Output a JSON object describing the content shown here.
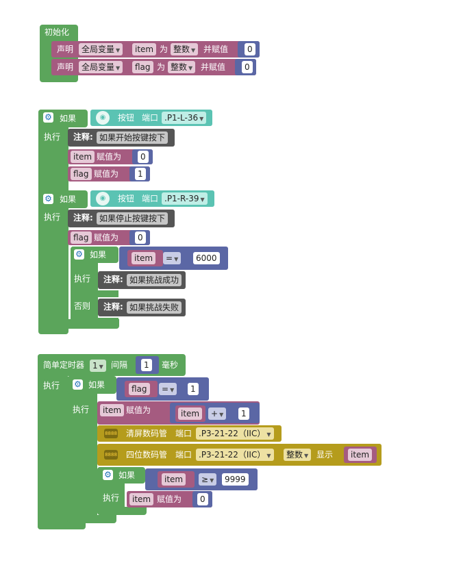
{
  "init": {
    "title": "初始化",
    "decls": [
      {
        "kw": "声明",
        "scope": "全局变量",
        "var": "item",
        "as": "为",
        "type": "整数",
        "assign": "并赋值",
        "value": "0"
      },
      {
        "kw": "声明",
        "scope": "全局变量",
        "var": "flag",
        "as": "为",
        "type": "整数",
        "assign": "并赋值",
        "value": "0"
      }
    ]
  },
  "if1": {
    "if_label": "如果",
    "do_label": "执行",
    "button": "按钮",
    "port_label": "端口",
    "port": ".P1-L-36",
    "note_label": "注释:",
    "note": "如果开始按键按下",
    "set_item": "item",
    "assign": "赋值为",
    "item_val": "0",
    "set_flag": "flag",
    "flag_val": "1"
  },
  "if2": {
    "if_label": "如果",
    "do_label": "执行",
    "button": "按钮",
    "port_label": "端口",
    "port": ".P1-R-39",
    "note_label": "注释:",
    "note": "如果停止按键按下",
    "set_flag": "flag",
    "assign": "赋值为",
    "flag_val": "0",
    "inner": {
      "if_label": "如果",
      "do_label": "执行",
      "else_label": "否则",
      "var": "item",
      "op": "=",
      "value": "6000",
      "note_label": "注释:",
      "note_yes": "如果挑战成功",
      "note_no": "如果挑战失败"
    }
  },
  "timer": {
    "title": "简单定时器",
    "id": "1",
    "interval": "间隔",
    "ms": "1",
    "unit": "毫秒",
    "do_label": "执行",
    "if": {
      "if_label": "如果",
      "do_label": "执行",
      "var": "flag",
      "op": "=",
      "value": "1",
      "set_item": "item",
      "assign": "赋值为",
      "expr_var": "item",
      "expr_op": "+",
      "expr_val": "1",
      "clear": "清屏数码管",
      "port_label": "端口",
      "port": ".P3-21-22（IIC）",
      "show4": "四位数码管",
      "num_type": "整数",
      "show": "显示",
      "show_var": "item",
      "inner": {
        "if_label": "如果",
        "do_label": "执行",
        "var": "item",
        "op": "≥",
        "value": "9999",
        "set_item": "item",
        "assign": "赋值为",
        "item_val": "0"
      }
    }
  }
}
